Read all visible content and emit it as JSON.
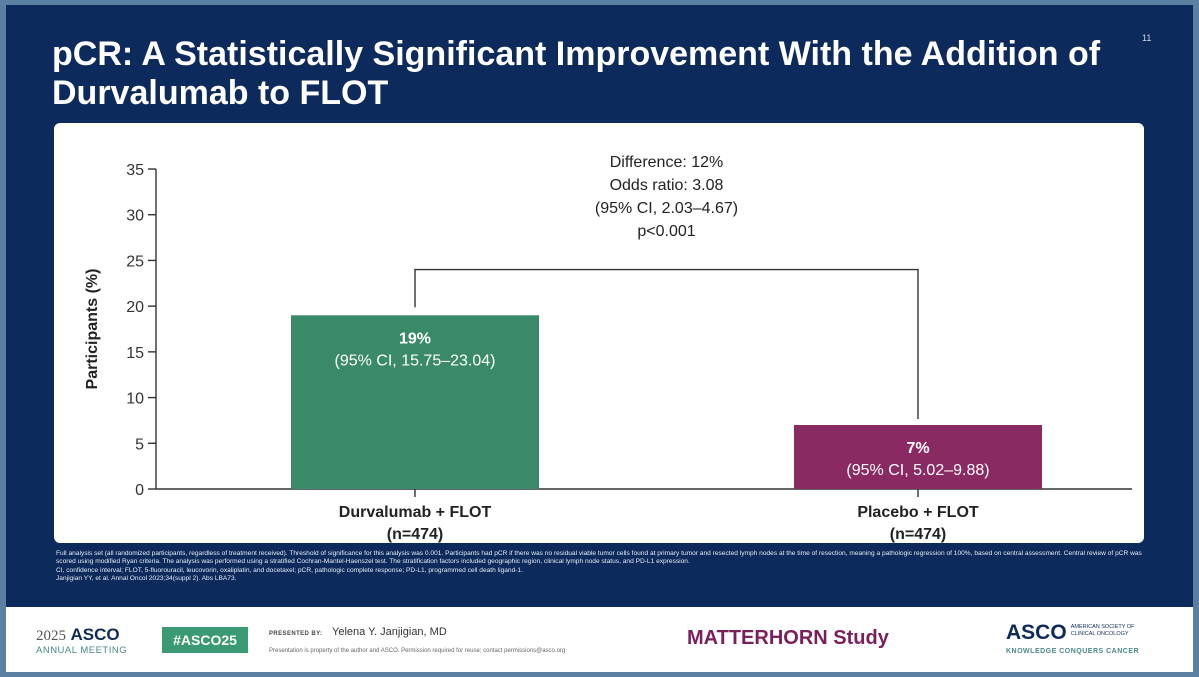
{
  "slide": {
    "title": "pCR: A Statistically Significant Improvement With the Addition of Durvalumab to FLOT",
    "page_number": "11"
  },
  "chart_data": {
    "type": "bar",
    "title": "",
    "xlabel": "",
    "ylabel": "Participants (%)",
    "ylim": [
      0,
      35
    ],
    "yticks": [
      0,
      5,
      10,
      15,
      20,
      25,
      30,
      35
    ],
    "grid": false,
    "categories": [
      "Durvalumab + FLOT",
      "Placebo + FLOT"
    ],
    "category_n": [
      "(n=474)",
      "(n=474)"
    ],
    "values": [
      19,
      7
    ],
    "value_labels": [
      "19%",
      "7%"
    ],
    "ci_labels": [
      "(95% CI, 15.75–23.04)",
      "(95% CI, 5.02–9.88)"
    ],
    "colors": [
      "#3a8a6a",
      "#8a2a62"
    ],
    "comparison_bracket_level": 24,
    "comparison": [
      "Difference: 12%",
      "Odds ratio: 3.08",
      "(95% CI, 2.03–4.67)",
      "p<0.001"
    ]
  },
  "footnotes": [
    "Full analysis set (all randomized participants, regardless of treatment received). Threshold of significance for this analysis was 0.001. Participants had pCR if there was no residual viable tumor cells found at primary tumor and resected lymph nodes at the time of resection, meaning a pathologic regression of 100%, based on central assessment. Central review of pCR was scored using modified Ryan criteria. The analysis was performed using a stratified Cochran-Mantel-Haenszel test. The stratification factors included geographic region, clinical lymph node status, and PD-L1 expression.",
    "CI, confidence interval; FLOT, 5-fluorouracil, leucovorin, oxaliplatin, and docetaxel; pCR, pathologic complete response; PD-L1, programmed cell death ligand-1.",
    "Janjigian YY, et al. Annal Oncol 2023;34(suppl 2). Abs LBA73."
  ],
  "footer": {
    "meeting_year": "2025",
    "meeting_brand": "ASCO",
    "meeting_sub": "ANNUAL MEETING",
    "hashtag": "#ASCO25",
    "presented_by_label": "PRESENTED BY:",
    "presenter": "Yelena Y. Janjigian, MD",
    "permission": "Presentation is property of the author and ASCO. Permission required for reuse; contact permissions@asco.org",
    "study_name": "MATTERHORN Study",
    "asco_mark": "ASCO",
    "asco_society": "AMERICAN SOCIETY OF CLINICAL ONCOLOGY",
    "asco_tagline": "KNOWLEDGE CONQUERS CANCER"
  }
}
